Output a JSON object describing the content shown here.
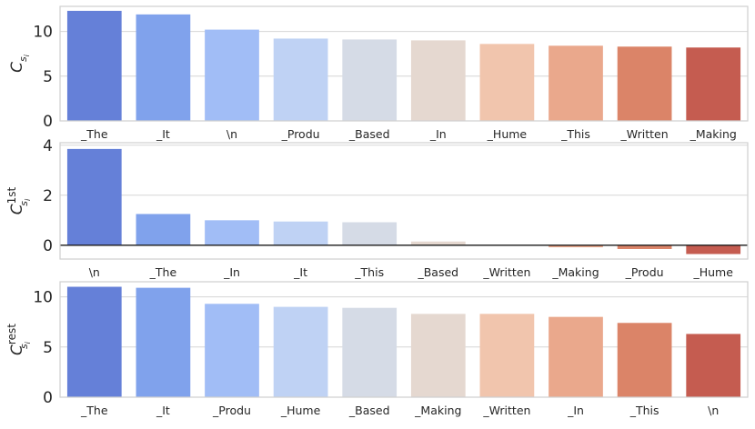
{
  "colors": [
    "#6580d8",
    "#80a2ec",
    "#a1bdf6",
    "#bfd2f4",
    "#d5dbe6",
    "#e5d8d0",
    "#f1c5ad",
    "#eaa88c",
    "#db8468",
    "#c55c50"
  ],
  "chart_data": [
    {
      "type": "bar",
      "ylabel": {
        "base": "C",
        "sub": "s",
        "subsub": "i",
        "sup": ""
      },
      "ylim": [
        0,
        12.8
      ],
      "yticks": [
        0,
        5,
        10
      ],
      "grid": true,
      "categories": [
        "_The",
        "_It",
        "\\n",
        "_Produ",
        "_Based",
        "_In",
        "_Hume",
        "_This",
        "_Written",
        "_Making"
      ],
      "values": [
        12.3,
        11.9,
        10.2,
        9.2,
        9.1,
        9.0,
        8.6,
        8.4,
        8.3,
        8.2
      ]
    },
    {
      "type": "bar",
      "ylabel": {
        "base": "C",
        "sub": "s",
        "subsub": "i",
        "sup": "1st"
      },
      "ylim": [
        -0.55,
        4.1
      ],
      "yticks": [
        0,
        2,
        4
      ],
      "grid": true,
      "zero_line": true,
      "categories": [
        "\\n",
        "_The",
        "_In",
        "_It",
        "_This",
        "_Based",
        "_Written",
        "_Making",
        "_Produ",
        "_Hume"
      ],
      "values": [
        3.85,
        1.25,
        1.0,
        0.95,
        0.92,
        0.15,
        -0.02,
        -0.08,
        -0.15,
        -0.35
      ]
    },
    {
      "type": "bar",
      "ylabel": {
        "base": "C",
        "sub": "s",
        "subsub": "i",
        "sup": "rest"
      },
      "ylim": [
        0,
        11.5
      ],
      "yticks": [
        0,
        5,
        10
      ],
      "grid": true,
      "categories": [
        "_The",
        "_It",
        "_Produ",
        "_Hume",
        "_Based",
        "_Making",
        "_Written",
        "_In",
        "_This",
        "\\n"
      ],
      "values": [
        11.0,
        10.9,
        9.3,
        9.0,
        8.9,
        8.3,
        8.3,
        8.0,
        7.4,
        6.3
      ]
    }
  ]
}
